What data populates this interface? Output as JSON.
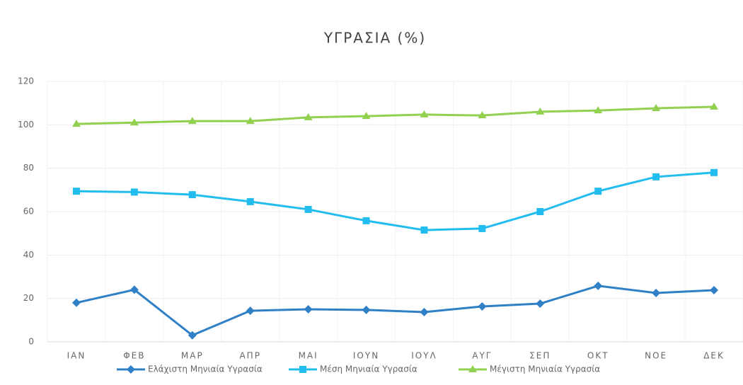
{
  "chart_data": {
    "type": "line",
    "title": "ΥΓΡΑΣΙΑ (%)",
    "categories": [
      "ΙΑΝ",
      "ΦΕΒ",
      "ΜΑΡ",
      "ΑΠΡ",
      "ΜΑΙ",
      "ΙΟΥΝ",
      "ΙΟΥΛ",
      "ΑΥΓ",
      "ΣΕΠ",
      "ΟΚΤ",
      "ΝΟΕ",
      "ΔΕΚ"
    ],
    "series": [
      {
        "name": "Ελάχιστη Μηνιαία Υγρασία",
        "color": "#2f80c6",
        "marker": "diamond",
        "values": [
          18,
          24,
          3,
          14.3,
          15,
          14.7,
          13.7,
          16.3,
          17.6,
          25.8,
          22.5,
          23.8
        ]
      },
      {
        "name": "Μέση Μηνιαία Υγρασία",
        "color": "#22bdee",
        "marker": "square",
        "values": [
          69.4,
          69,
          67.8,
          64.6,
          61,
          55.8,
          51.5,
          52.2,
          60,
          69.4,
          76,
          78
        ]
      },
      {
        "name": "Μέγιστη Μηνιαία Υγρασία",
        "color": "#92d050",
        "marker": "triangle",
        "values": [
          100.4,
          101,
          101.7,
          101.7,
          103.4,
          104,
          104.7,
          104.3,
          106,
          106.6,
          107.6,
          108.3
        ]
      }
    ],
    "ylim": [
      0,
      120
    ],
    "yticks": [
      0,
      20,
      40,
      60,
      80,
      100,
      120
    ],
    "grid": true
  }
}
